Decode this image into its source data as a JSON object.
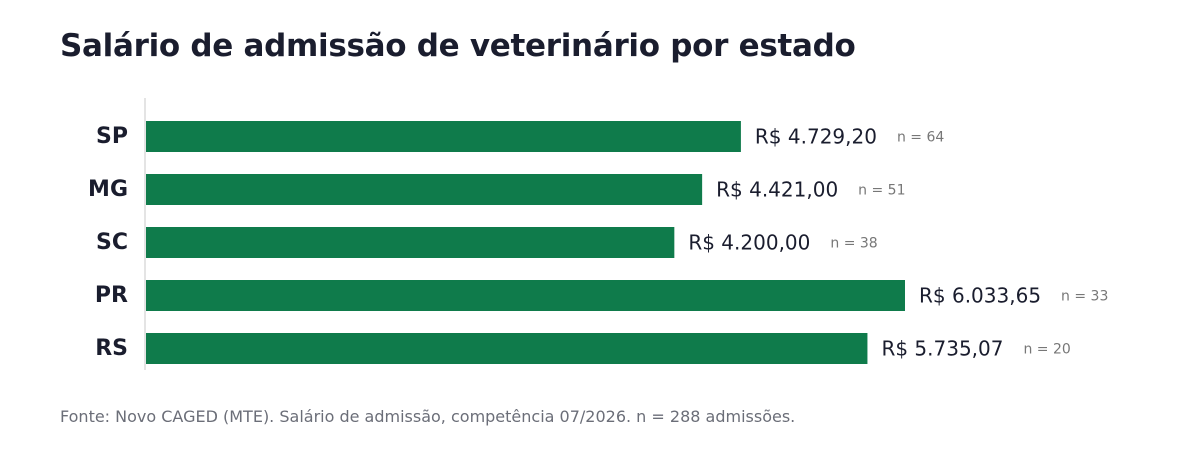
{
  "chart_data": {
    "type": "bar",
    "orientation": "horizontal",
    "title": "Salário de admissão de veterinário por estado",
    "categories": [
      "SP",
      "MG",
      "SC",
      "PR",
      "RS"
    ],
    "values": [
      4729.2,
      4421.0,
      4200.0,
      6033.65,
      5735.07
    ],
    "value_labels": [
      "R$ 4.729,20",
      "R$ 4.421,00",
      "R$ 4.200,00",
      "R$ 6.033,65",
      "R$ 5.735,07"
    ],
    "n_labels": [
      "n = 64",
      "n = 51",
      "n = 38",
      "n = 33",
      "n = 20"
    ],
    "xlim": [
      0,
      6033.65
    ],
    "grid": false,
    "bar_color": "#0f7b4b",
    "source": "Fonte: Novo CAGED (MTE). Salário de admissão, competência 07/2026. n = 288 admissões."
  }
}
